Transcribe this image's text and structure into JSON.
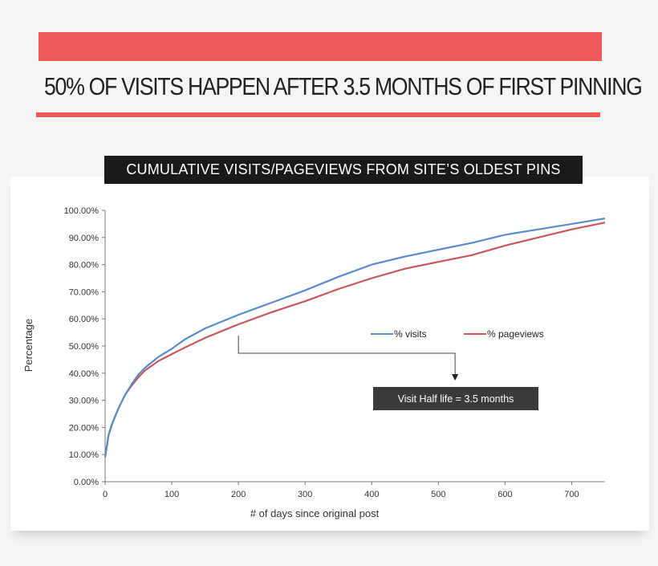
{
  "headline": "50% OF VISITS HAPPEN AFTER 3.5 MONTHS OF FIRST PINNING",
  "colors": {
    "accent": "#ef5a5a",
    "visits": "#5b8bc9",
    "pageviews": "#c9575a",
    "annotation_box": "#3a3a3a"
  },
  "chart_data": {
    "type": "line",
    "title": "CUMULATIVE VISITS/PAGEVIEWS FROM SITE’S OLDEST PINS",
    "xlabel": "# of days since original post",
    "ylabel": "Percentage",
    "xlim": [
      0,
      750
    ],
    "ylim": [
      0,
      100
    ],
    "x_ticks": [
      0,
      100,
      200,
      300,
      400,
      500,
      600,
      700
    ],
    "y_ticks": [
      0,
      10,
      20,
      30,
      40,
      50,
      60,
      70,
      80,
      90,
      100
    ],
    "y_tick_labels": [
      "0.00%",
      "10.00%",
      "20.00%",
      "30.00%",
      "40.00%",
      "50.00%",
      "60.00%",
      "70.00%",
      "80.00%",
      "90.00%",
      "100.00%"
    ],
    "grid": false,
    "legend": "center-right",
    "series": [
      {
        "name": "% visits",
        "x": [
          0,
          5,
          10,
          20,
          30,
          40,
          50,
          60,
          80,
          100,
          120,
          150,
          180,
          200,
          250,
          300,
          350,
          400,
          450,
          500,
          550,
          600,
          650,
          700,
          750
        ],
        "values": [
          9,
          17,
          21,
          27,
          32,
          36,
          39.5,
          42,
          46,
          49,
          52.5,
          56.5,
          59.5,
          61.5,
          66,
          70.5,
          75.5,
          80,
          83,
          85.5,
          88,
          91,
          93,
          95,
          97
        ]
      },
      {
        "name": "% pageviews",
        "x": [
          0,
          5,
          10,
          20,
          30,
          40,
          50,
          60,
          80,
          100,
          120,
          150,
          180,
          200,
          250,
          300,
          350,
          400,
          450,
          500,
          550,
          600,
          650,
          700,
          750
        ],
        "values": [
          9,
          17,
          21,
          27,
          32,
          35.5,
          38.5,
          41,
          44.5,
          47,
          49.5,
          53,
          56,
          58,
          62.5,
          66.5,
          71,
          75,
          78.5,
          81,
          83.5,
          87,
          90,
          93,
          95.5
        ]
      }
    ],
    "annotations": [
      {
        "text": "Visit Half life = 3.5 months",
        "from_x": 200,
        "to_x": 525
      }
    ]
  }
}
